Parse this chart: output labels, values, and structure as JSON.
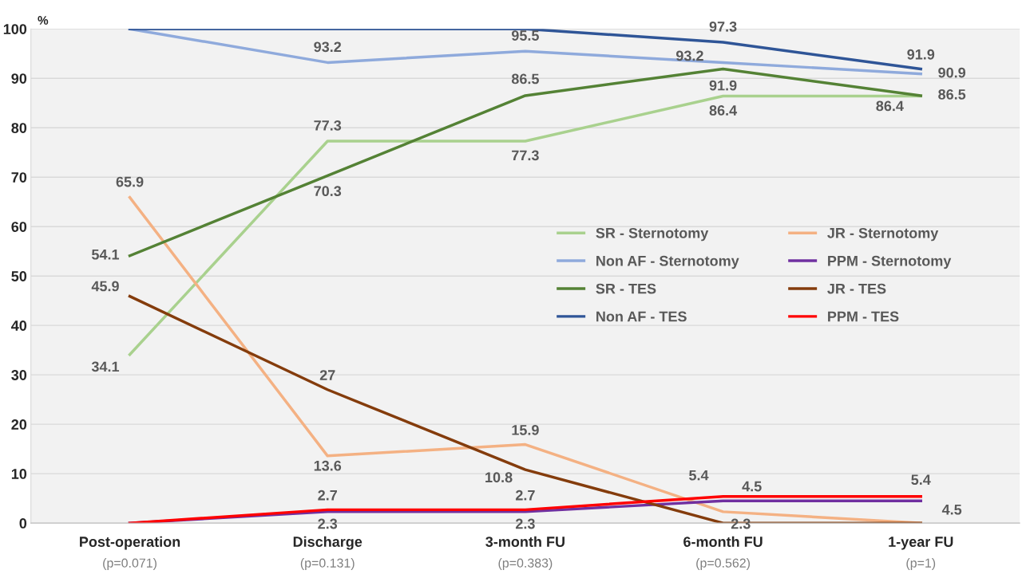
{
  "chart_data": {
    "type": "line",
    "ylabel": "%",
    "categories": [
      "Post-operation\n(p=0.071)",
      "Discharge\n(p=0.131)",
      "3-month FU\n(p=0.383)",
      "6-month FU\n(p=0.562)",
      "1-year FU\n(p=1)"
    ],
    "ylim": [
      0,
      100
    ],
    "yticks": [
      0,
      10,
      20,
      30,
      40,
      50,
      60,
      70,
      80,
      90,
      100
    ],
    "grid": "y",
    "legend": "right",
    "marker": "none",
    "line_style": "solid",
    "series": [
      {
        "name": "SR - Sternotomy",
        "color": "#a9d18e",
        "values": [
          34.1,
          77.3,
          77.3,
          86.4,
          86.4
        ],
        "value_labels": [
          "34.1",
          "77.3",
          "77.3",
          "86.4",
          "86.4"
        ]
      },
      {
        "name": "JR - Sternotomy",
        "color": "#f4b183",
        "values": [
          65.9,
          13.6,
          15.9,
          2.3,
          0
        ],
        "value_labels": [
          "65.9",
          "13.6",
          "15.9",
          "2.3",
          null
        ]
      },
      {
        "name": "Non AF - Sternotomy",
        "color": "#8faadc",
        "values": [
          100,
          93.2,
          95.5,
          93.2,
          90.9
        ],
        "value_labels": [
          null,
          "93.2",
          "95.5",
          "93.2",
          "90.9"
        ]
      },
      {
        "name": "PPM - Sternotomy",
        "color": "#7030a0",
        "values": [
          0,
          2.3,
          2.3,
          4.5,
          4.5
        ],
        "value_labels": [
          null,
          "2.3",
          "2.3",
          "4.5",
          "4.5"
        ]
      },
      {
        "name": "SR - TES",
        "color": "#548235",
        "values": [
          54.1,
          70.3,
          86.5,
          91.9,
          86.5
        ],
        "value_labels": [
          "54.1",
          "70.3",
          "86.5",
          "91.9",
          "86.5"
        ]
      },
      {
        "name": "JR - TES",
        "color": "#843c0c",
        "values": [
          45.9,
          27,
          10.8,
          0,
          0
        ],
        "value_labels": [
          "45.9",
          "27",
          "10.8",
          null,
          null
        ]
      },
      {
        "name": "Non AF - TES",
        "color": "#2f5597",
        "values": [
          100,
          100,
          100,
          97.3,
          91.9
        ],
        "value_labels": [
          null,
          null,
          null,
          "97.3",
          "91.9"
        ]
      },
      {
        "name": "PPM - TES",
        "color": "#ff0000",
        "values": [
          0,
          2.7,
          2.7,
          5.4,
          5.4
        ],
        "value_labels": [
          null,
          "2.7",
          "2.7",
          "5.4",
          "5.4"
        ]
      }
    ]
  }
}
